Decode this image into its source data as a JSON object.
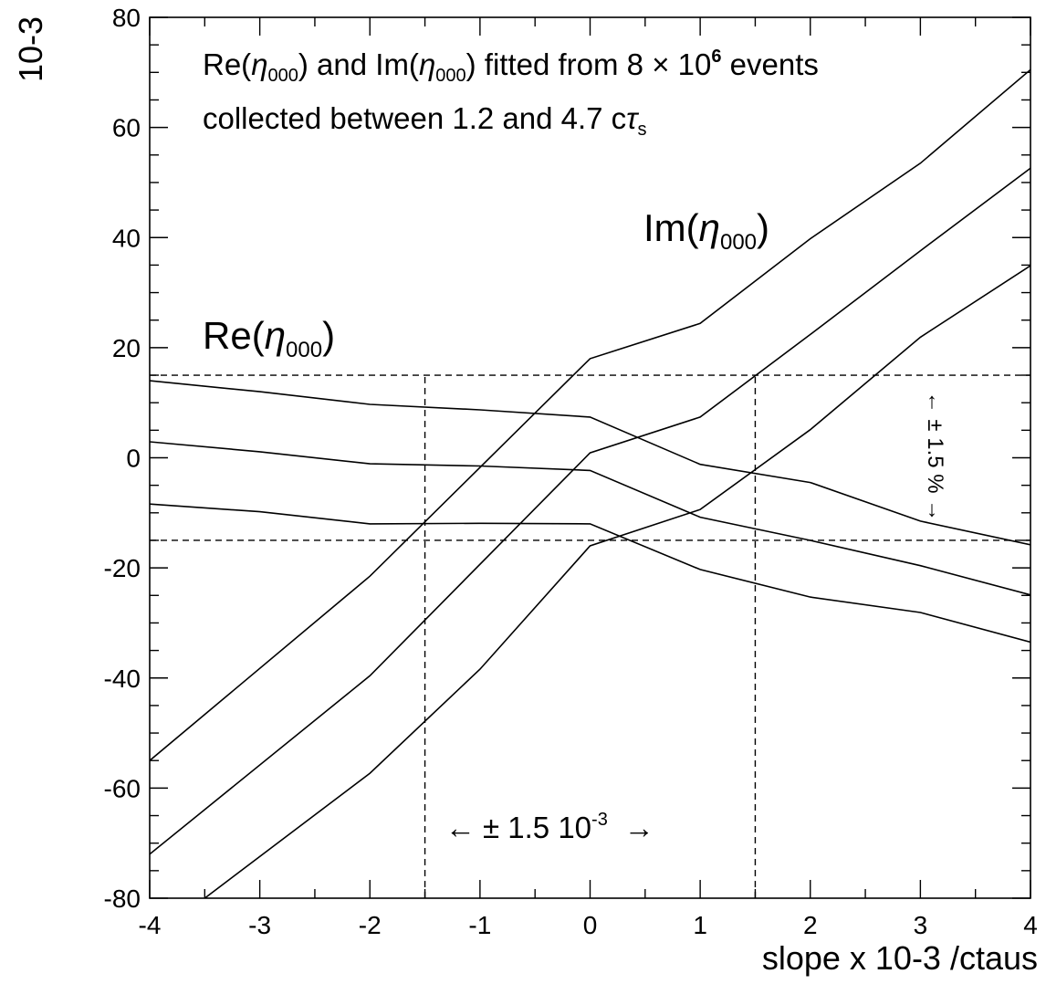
{
  "chart_data": {
    "type": "line",
    "title": "",
    "xlabel": "slope x 10-3 /ctaus",
    "ylabel": "10-3",
    "xlim": [
      -4,
      4
    ],
    "ylim": [
      -80,
      80
    ],
    "x_ticks": [
      "-4",
      "-3",
      "-2",
      "-1",
      "0",
      "1",
      "2",
      "3",
      "4"
    ],
    "y_ticks": [
      "-80",
      "-60",
      "-40",
      "-20",
      "0",
      "20",
      "40",
      "60",
      "80"
    ],
    "grid": false,
    "legend": "none",
    "annotations": {
      "fit_line1_a": "Re(",
      "fit_line1_b": ") and Im(",
      "fit_line1_c": ") fitted from 8 ",
      "fit_line1_times": "×",
      "fit_line1_d": " 10",
      "fit_line1_exp": "6",
      "fit_line1_e": " events",
      "fit_line2_a": "collected between 1.2 and 4.7 c",
      "eta": "η",
      "eta_sub": "000",
      "tau": "τ",
      "tau_sub": "s",
      "re_label_a": "Re(",
      "re_label_b": ")",
      "im_label_a": "Im(",
      "im_label_b": ")",
      "slope_range_left_arrow": "←",
      "slope_range_text": "± 1.5 10",
      "slope_range_exp": "-3",
      "slope_range_right_arrow": "→",
      "side_range": "← ± 1.5 %  →"
    },
    "reference_lines": {
      "horizontal": [
        15,
        -15
      ],
      "vertical": [
        -1.5,
        1.5
      ]
    },
    "series": [
      {
        "group": "Re",
        "x": [
          -4,
          -3,
          -2,
          -1,
          0,
          1,
          2,
          3,
          4
        ],
        "values": [
          14,
          12,
          9.7,
          8.7,
          7.4,
          -1.2,
          -4.5,
          -11.5,
          -15.8
        ]
      },
      {
        "group": "Re",
        "x": [
          -4,
          -3,
          -2,
          -1,
          0,
          1,
          2,
          3,
          4
        ],
        "values": [
          2.9,
          1.1,
          -1.1,
          -1.5,
          -2.3,
          -10.8,
          -15,
          -19.6,
          -24.9
        ]
      },
      {
        "group": "Re",
        "x": [
          -4,
          -3,
          -2,
          -1,
          0,
          1,
          2,
          3,
          4
        ],
        "values": [
          -8.4,
          -9.8,
          -12,
          -11.9,
          -12,
          -20.3,
          -25.3,
          -28.1,
          -33.5
        ]
      },
      {
        "group": "Im",
        "x": [
          -4,
          -2,
          0,
          1,
          2,
          3,
          4
        ],
        "values": [
          -55,
          -21.5,
          18,
          24.4,
          39.8,
          53.5,
          70.5
        ]
      },
      {
        "group": "Im",
        "x": [
          -4,
          -2,
          0,
          1,
          2,
          3,
          4
        ],
        "values": [
          -72,
          -39.6,
          0.9,
          7.4,
          22.4,
          37.6,
          52.6
        ]
      },
      {
        "group": "Im",
        "x": [
          -3.5,
          -2,
          -1,
          0,
          1,
          2,
          3,
          4
        ],
        "values": [
          -80,
          -57.3,
          -38.4,
          -16,
          -9.4,
          5.1,
          21.9,
          34.9
        ]
      }
    ]
  }
}
